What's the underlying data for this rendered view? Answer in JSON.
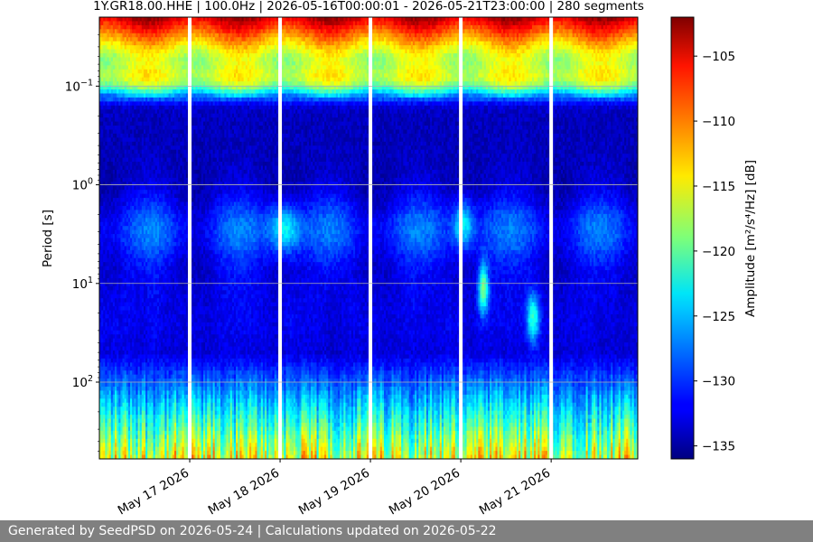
{
  "chart_data": {
    "type": "heatmap",
    "title": "1Y.GR18.00.HHE | 100.0Hz | 2026-05-16T00:00:01 - 2026-05-21T23:00:00 | 280 segments",
    "ylabel": "Period [s]",
    "colorbar_label": "Amplitude [m²/s⁴/Hz] [dB]",
    "colormap": "jet",
    "x_ticks": [
      "May 17 2026",
      "May 18 2026",
      "May 19 2026",
      "May 20 2026",
      "May 21 2026"
    ],
    "xlim": [
      "2026-05-16T00:00:01",
      "2026-05-21T23:00:00"
    ],
    "y_scale": "log",
    "y_inverted": true,
    "ylim": [
      0.02,
      600
    ],
    "y_ticks": [
      {
        "base": "10",
        "exp": "−1"
      },
      {
        "base": "10",
        "exp": "0"
      },
      {
        "base": "10",
        "exp": "1"
      },
      {
        "base": "10",
        "exp": "2"
      }
    ],
    "colorbar_range": [
      -136,
      -102
    ],
    "colorbar_ticks": [
      "−105",
      "−110",
      "−115",
      "−120",
      "−125",
      "−130",
      "−135"
    ],
    "grid": "horizontal",
    "gaps": [
      "May 17 2026",
      "May 18 2026",
      "May 19 2026",
      "May 20 2026",
      "May 21 2026"
    ],
    "segments": 280
  },
  "footer": {
    "text": "Generated by SeedPSD on 2026-05-24 | Calculations updated on 2026-05-22"
  }
}
